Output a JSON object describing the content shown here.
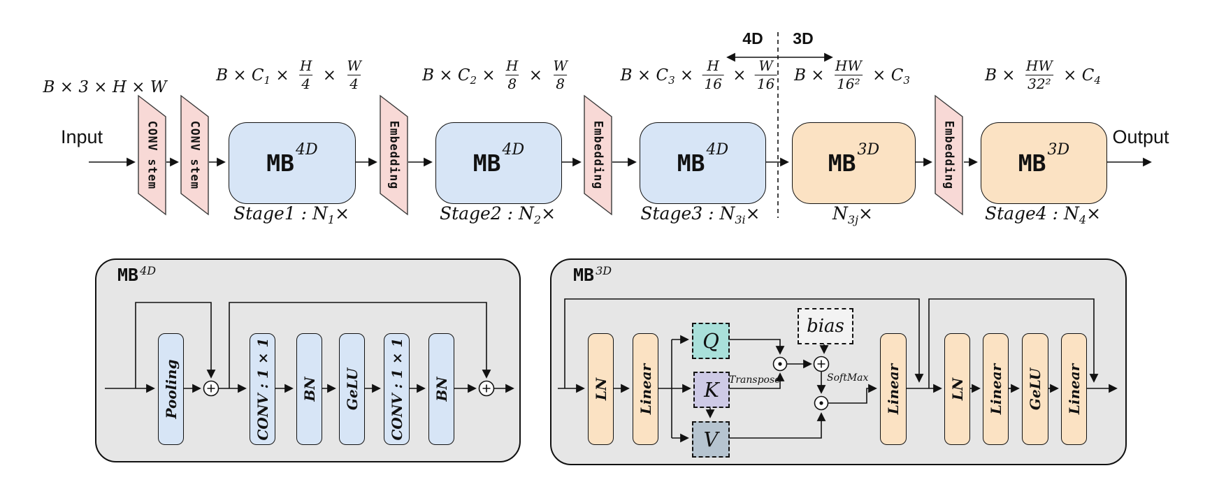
{
  "diagram": {
    "io": {
      "input": "Input",
      "output": "Output"
    },
    "divider": {
      "left": "4D",
      "right": "3D"
    },
    "stem_label": "CONV stem",
    "embedding_label": "Embedding",
    "mb4d": {
      "base": "MB",
      "sup": "4D"
    },
    "mb3d": {
      "base": "MB",
      "sup": "3D"
    },
    "dims": [
      {
        "tokens": [
          {
            "t": "B × 3 × H × W"
          }
        ]
      },
      {
        "tokens": [
          {
            "t": "B × C"
          },
          {
            "sub": "1"
          },
          {
            "t": " × "
          },
          {
            "frac": [
              "H",
              "4"
            ]
          },
          {
            "t": " × "
          },
          {
            "frac": [
              "W",
              "4"
            ]
          }
        ]
      },
      {
        "tokens": [
          {
            "t": "B × C"
          },
          {
            "sub": "2"
          },
          {
            "t": " × "
          },
          {
            "frac": [
              "H",
              "8"
            ]
          },
          {
            "t": " × "
          },
          {
            "frac": [
              "W",
              "8"
            ]
          }
        ]
      },
      {
        "tokens": [
          {
            "t": "B × C"
          },
          {
            "sub": "3"
          },
          {
            "t": " × "
          },
          {
            "frac": [
              "H",
              "16"
            ]
          },
          {
            "t": " × "
          },
          {
            "frac": [
              "W",
              "16"
            ]
          }
        ]
      },
      {
        "tokens": [
          {
            "t": "B × "
          },
          {
            "frac": [
              "HW",
              "16²"
            ]
          },
          {
            "t": " × C"
          },
          {
            "sub": "3"
          }
        ]
      },
      {
        "tokens": [
          {
            "t": "B × "
          },
          {
            "frac": [
              "HW",
              "32²"
            ]
          },
          {
            "t": " × C"
          },
          {
            "sub": "4"
          }
        ]
      }
    ],
    "stages": [
      {
        "tokens": [
          {
            "t": "Stage1 : N"
          },
          {
            "sub": "1"
          },
          {
            "t": "×"
          }
        ]
      },
      {
        "tokens": [
          {
            "t": "Stage2 : N"
          },
          {
            "sub": "2"
          },
          {
            "t": "×"
          }
        ]
      },
      {
        "tokens": [
          {
            "t": "Stage3 : N"
          },
          {
            "sub": "3i"
          },
          {
            "t": "×"
          }
        ]
      },
      {
        "tokens": [
          {
            "t": "N"
          },
          {
            "sub": "3j"
          },
          {
            "t": "×"
          }
        ]
      },
      {
        "tokens": [
          {
            "t": "Stage4 : N"
          },
          {
            "sub": "4"
          },
          {
            "t": "×"
          }
        ]
      }
    ],
    "mb4d_detail": {
      "pills": [
        "Pooling",
        "CONV : 1 × 1",
        "BN",
        "GeLU",
        "CONV : 1 × 1",
        "BN"
      ]
    },
    "mb3d_detail": {
      "pills_in": [
        "LN",
        "Linear"
      ],
      "qkv": [
        "Q",
        "K",
        "V"
      ],
      "bias": "bias",
      "transpose": "Transpose",
      "softmax": "SoftMax",
      "attn_out": "Linear",
      "mlp": [
        "LN",
        "Linear",
        "GeLU",
        "Linear"
      ]
    },
    "colors": {
      "blue": "#d7e5f6",
      "orange": "#fbe2c3",
      "pink": "#f8d9d6",
      "gray": "#e6e6e6",
      "q": "#a9e0da",
      "k": "#cecae6",
      "v": "#b6c4d0",
      "bias": "#f3f3f3",
      "line": "#111111"
    }
  }
}
